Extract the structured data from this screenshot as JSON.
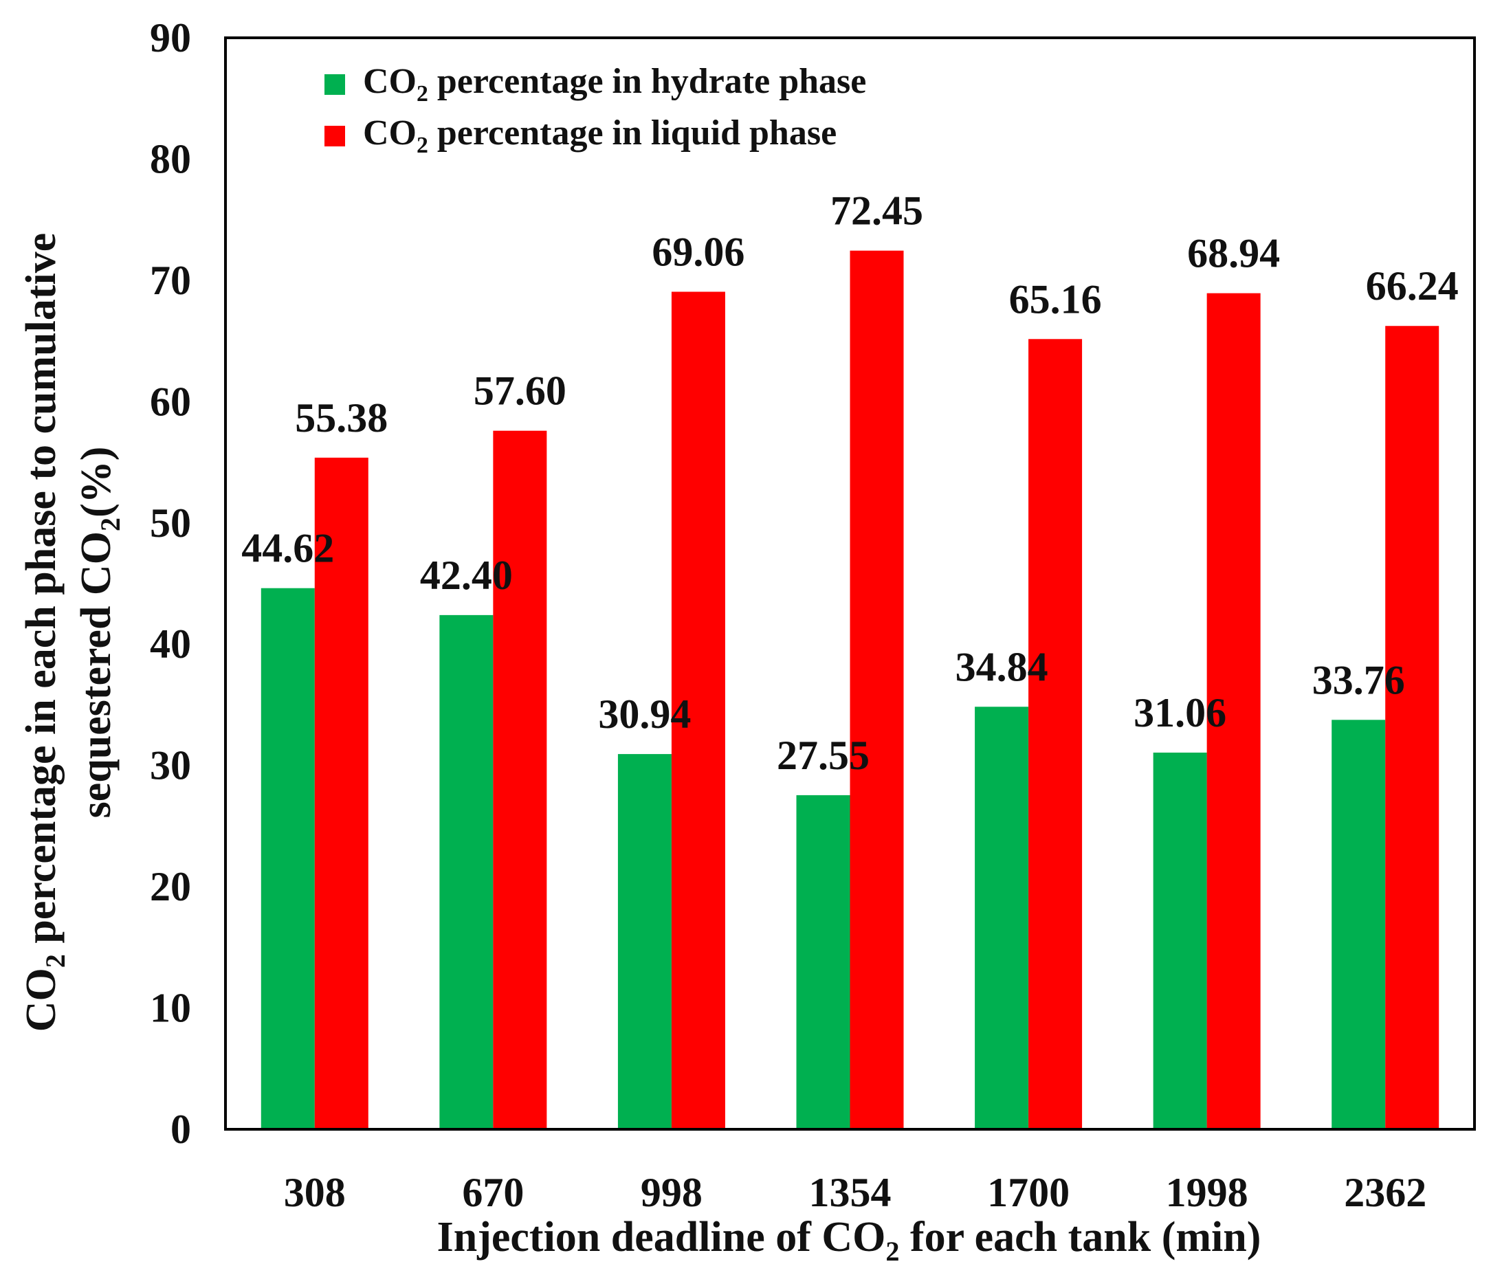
{
  "chart_data": {
    "type": "bar",
    "categories": [
      "308",
      "670",
      "998",
      "1354",
      "1700",
      "1998",
      "2362"
    ],
    "series": [
      {
        "name": "CO2 percentage in hydrate phase",
        "color": "#00b050",
        "values": [
          44.62,
          42.4,
          30.94,
          27.55,
          34.84,
          31.06,
          33.76
        ],
        "labels": [
          "44.62",
          "42.40",
          "30.94",
          "27.55",
          "34.84",
          "31.06",
          "33.76"
        ]
      },
      {
        "name": "CO2 percentage in liquid phase",
        "color": "#ff0000",
        "values": [
          55.38,
          57.6,
          69.06,
          72.45,
          65.16,
          68.94,
          66.24
        ],
        "labels": [
          "55.38",
          "57.60",
          "69.06",
          "72.45",
          "65.16",
          "68.94",
          "66.24"
        ]
      }
    ],
    "legend": {
      "entries": [
        {
          "pre": "CO",
          "sub": "2",
          "post": " percentage in hydrate phase"
        },
        {
          "pre": "CO",
          "sub": "2",
          "post": " percentage in liquid phase"
        }
      ],
      "placement": "top-left"
    },
    "xlabel": {
      "pre": "Injection deadline of CO",
      "sub": "2",
      "post": " for each tank (min)"
    },
    "ylabel": {
      "line1": {
        "pre": "CO",
        "sub": "2",
        "post": " percentage in each phase to cumulative"
      },
      "line2": {
        "pre": "sequestered CO",
        "sub": "2",
        "post": "(%)"
      }
    },
    "ylim": [
      0,
      90
    ],
    "yticks": [
      "0",
      "10",
      "20",
      "30",
      "40",
      "50",
      "60",
      "70",
      "80",
      "90"
    ],
    "grid": false
  }
}
